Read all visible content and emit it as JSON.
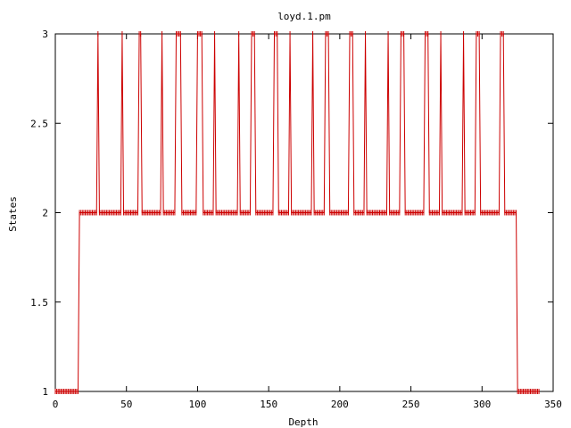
{
  "chart_data": {
    "type": "line",
    "title": "loyd.1.pm",
    "xlabel": "Depth",
    "ylabel": "States",
    "xlim": [
      0,
      350
    ],
    "ylim": [
      1,
      3
    ],
    "xticks": [
      0,
      50,
      100,
      150,
      200,
      250,
      300,
      350
    ],
    "xtick_labels": [
      "0",
      "50",
      "100",
      "150",
      "200",
      "250",
      "300",
      "350"
    ],
    "yticks": [
      1,
      1.5,
      2,
      2.5,
      3
    ],
    "ytick_labels": [
      "1",
      "1.5",
      "2",
      "2.5",
      "3"
    ],
    "grid": false,
    "legend": "none",
    "series_color": "#cc0000",
    "series": [
      {
        "points": [
          [
            0,
            1
          ],
          [
            1,
            1
          ],
          [
            2,
            1
          ],
          [
            3,
            1
          ],
          [
            4,
            1
          ],
          [
            5,
            1
          ],
          [
            6,
            1
          ],
          [
            7,
            1
          ],
          [
            8,
            1
          ],
          [
            9,
            1
          ],
          [
            10,
            1
          ],
          [
            11,
            1
          ],
          [
            12,
            1
          ],
          [
            13,
            1
          ],
          [
            14,
            1
          ],
          [
            15,
            1
          ],
          [
            16,
            1
          ],
          [
            17,
            2
          ],
          [
            18,
            2
          ],
          [
            19,
            2
          ],
          [
            20,
            2
          ],
          [
            21,
            2
          ],
          [
            22,
            2
          ],
          [
            23,
            2
          ],
          [
            24,
            2
          ],
          [
            25,
            2
          ],
          [
            26,
            2
          ],
          [
            27,
            2
          ],
          [
            28,
            2
          ],
          [
            29,
            2
          ],
          [
            30,
            3
          ],
          [
            31,
            2
          ],
          [
            32,
            2
          ],
          [
            33,
            2
          ],
          [
            34,
            2
          ],
          [
            35,
            2
          ],
          [
            36,
            2
          ],
          [
            37,
            2
          ],
          [
            38,
            2
          ],
          [
            39,
            2
          ],
          [
            40,
            2
          ],
          [
            41,
            2
          ],
          [
            42,
            2
          ],
          [
            43,
            2
          ],
          [
            44,
            2
          ],
          [
            45,
            2
          ],
          [
            46,
            2
          ],
          [
            47,
            3
          ],
          [
            48,
            2
          ],
          [
            49,
            2
          ],
          [
            50,
            2
          ],
          [
            51,
            2
          ],
          [
            52,
            2
          ],
          [
            53,
            2
          ],
          [
            54,
            2
          ],
          [
            55,
            2
          ],
          [
            56,
            2
          ],
          [
            57,
            2
          ],
          [
            58,
            2
          ],
          [
            59,
            3
          ],
          [
            60,
            3
          ],
          [
            61,
            2
          ],
          [
            62,
            2
          ],
          [
            63,
            2
          ],
          [
            64,
            2
          ],
          [
            65,
            2
          ],
          [
            66,
            2
          ],
          [
            67,
            2
          ],
          [
            68,
            2
          ],
          [
            69,
            2
          ],
          [
            70,
            2
          ],
          [
            71,
            2
          ],
          [
            72,
            2
          ],
          [
            73,
            2
          ],
          [
            74,
            2
          ],
          [
            75,
            3
          ],
          [
            76,
            2
          ],
          [
            77,
            2
          ],
          [
            78,
            2
          ],
          [
            79,
            2
          ],
          [
            80,
            2
          ],
          [
            81,
            2
          ],
          [
            82,
            2
          ],
          [
            83,
            2
          ],
          [
            84,
            2
          ],
          [
            85,
            3
          ],
          [
            86,
            3
          ],
          [
            87,
            3
          ],
          [
            88,
            3
          ],
          [
            89,
            2
          ],
          [
            90,
            2
          ],
          [
            91,
            2
          ],
          [
            92,
            2
          ],
          [
            93,
            2
          ],
          [
            94,
            2
          ],
          [
            95,
            2
          ],
          [
            96,
            2
          ],
          [
            97,
            2
          ],
          [
            98,
            2
          ],
          [
            99,
            2
          ],
          [
            100,
            3
          ],
          [
            101,
            3
          ],
          [
            102,
            3
          ],
          [
            103,
            3
          ],
          [
            104,
            2
          ],
          [
            105,
            2
          ],
          [
            106,
            2
          ],
          [
            107,
            2
          ],
          [
            108,
            2
          ],
          [
            109,
            2
          ],
          [
            110,
            2
          ],
          [
            111,
            2
          ],
          [
            112,
            3
          ],
          [
            113,
            2
          ],
          [
            114,
            2
          ],
          [
            115,
            2
          ],
          [
            116,
            2
          ],
          [
            117,
            2
          ],
          [
            118,
            2
          ],
          [
            119,
            2
          ],
          [
            120,
            2
          ],
          [
            121,
            2
          ],
          [
            122,
            2
          ],
          [
            123,
            2
          ],
          [
            124,
            2
          ],
          [
            125,
            2
          ],
          [
            126,
            2
          ],
          [
            127,
            2
          ],
          [
            128,
            2
          ],
          [
            129,
            3
          ],
          [
            130,
            2
          ],
          [
            131,
            2
          ],
          [
            132,
            2
          ],
          [
            133,
            2
          ],
          [
            134,
            2
          ],
          [
            135,
            2
          ],
          [
            136,
            2
          ],
          [
            137,
            2
          ],
          [
            138,
            3
          ],
          [
            139,
            3
          ],
          [
            140,
            3
          ],
          [
            141,
            2
          ],
          [
            142,
            2
          ],
          [
            143,
            2
          ],
          [
            144,
            2
          ],
          [
            145,
            2
          ],
          [
            146,
            2
          ],
          [
            147,
            2
          ],
          [
            148,
            2
          ],
          [
            149,
            2
          ],
          [
            150,
            2
          ],
          [
            151,
            2
          ],
          [
            152,
            2
          ],
          [
            153,
            2
          ],
          [
            154,
            3
          ],
          [
            155,
            3
          ],
          [
            156,
            3
          ],
          [
            157,
            2
          ],
          [
            158,
            2
          ],
          [
            159,
            2
          ],
          [
            160,
            2
          ],
          [
            161,
            2
          ],
          [
            162,
            2
          ],
          [
            163,
            2
          ],
          [
            164,
            2
          ],
          [
            165,
            3
          ],
          [
            166,
            2
          ],
          [
            167,
            2
          ],
          [
            168,
            2
          ],
          [
            169,
            2
          ],
          [
            170,
            2
          ],
          [
            171,
            2
          ],
          [
            172,
            2
          ],
          [
            173,
            2
          ],
          [
            174,
            2
          ],
          [
            175,
            2
          ],
          [
            176,
            2
          ],
          [
            177,
            2
          ],
          [
            178,
            2
          ],
          [
            179,
            2
          ],
          [
            180,
            2
          ],
          [
            181,
            3
          ],
          [
            182,
            2
          ],
          [
            183,
            2
          ],
          [
            184,
            2
          ],
          [
            185,
            2
          ],
          [
            186,
            2
          ],
          [
            187,
            2
          ],
          [
            188,
            2
          ],
          [
            189,
            2
          ],
          [
            190,
            3
          ],
          [
            191,
            3
          ],
          [
            192,
            3
          ],
          [
            193,
            2
          ],
          [
            194,
            2
          ],
          [
            195,
            2
          ],
          [
            196,
            2
          ],
          [
            197,
            2
          ],
          [
            198,
            2
          ],
          [
            199,
            2
          ],
          [
            200,
            2
          ],
          [
            201,
            2
          ],
          [
            202,
            2
          ],
          [
            203,
            2
          ],
          [
            204,
            2
          ],
          [
            205,
            2
          ],
          [
            206,
            2
          ],
          [
            207,
            3
          ],
          [
            208,
            3
          ],
          [
            209,
            3
          ],
          [
            210,
            2
          ],
          [
            211,
            2
          ],
          [
            212,
            2
          ],
          [
            213,
            2
          ],
          [
            214,
            2
          ],
          [
            215,
            2
          ],
          [
            216,
            2
          ],
          [
            217,
            2
          ],
          [
            218,
            3
          ],
          [
            219,
            2
          ],
          [
            220,
            2
          ],
          [
            221,
            2
          ],
          [
            222,
            2
          ],
          [
            223,
            2
          ],
          [
            224,
            2
          ],
          [
            225,
            2
          ],
          [
            226,
            2
          ],
          [
            227,
            2
          ],
          [
            228,
            2
          ],
          [
            229,
            2
          ],
          [
            230,
            2
          ],
          [
            231,
            2
          ],
          [
            232,
            2
          ],
          [
            233,
            2
          ],
          [
            234,
            3
          ],
          [
            235,
            2
          ],
          [
            236,
            2
          ],
          [
            237,
            2
          ],
          [
            238,
            2
          ],
          [
            239,
            2
          ],
          [
            240,
            2
          ],
          [
            241,
            2
          ],
          [
            242,
            2
          ],
          [
            243,
            3
          ],
          [
            244,
            3
          ],
          [
            245,
            3
          ],
          [
            246,
            2
          ],
          [
            247,
            2
          ],
          [
            248,
            2
          ],
          [
            249,
            2
          ],
          [
            250,
            2
          ],
          [
            251,
            2
          ],
          [
            252,
            2
          ],
          [
            253,
            2
          ],
          [
            254,
            2
          ],
          [
            255,
            2
          ],
          [
            256,
            2
          ],
          [
            257,
            2
          ],
          [
            258,
            2
          ],
          [
            259,
            2
          ],
          [
            260,
            3
          ],
          [
            261,
            3
          ],
          [
            262,
            3
          ],
          [
            263,
            2
          ],
          [
            264,
            2
          ],
          [
            265,
            2
          ],
          [
            266,
            2
          ],
          [
            267,
            2
          ],
          [
            268,
            2
          ],
          [
            269,
            2
          ],
          [
            270,
            2
          ],
          [
            271,
            3
          ],
          [
            272,
            2
          ],
          [
            273,
            2
          ],
          [
            274,
            2
          ],
          [
            275,
            2
          ],
          [
            276,
            2
          ],
          [
            277,
            2
          ],
          [
            278,
            2
          ],
          [
            279,
            2
          ],
          [
            280,
            2
          ],
          [
            281,
            2
          ],
          [
            282,
            2
          ],
          [
            283,
            2
          ],
          [
            284,
            2
          ],
          [
            285,
            2
          ],
          [
            286,
            2
          ],
          [
            287,
            3
          ],
          [
            288,
            2
          ],
          [
            289,
            2
          ],
          [
            290,
            2
          ],
          [
            291,
            2
          ],
          [
            292,
            2
          ],
          [
            293,
            2
          ],
          [
            294,
            2
          ],
          [
            295,
            2
          ],
          [
            296,
            3
          ],
          [
            297,
            3
          ],
          [
            298,
            3
          ],
          [
            299,
            2
          ],
          [
            300,
            2
          ],
          [
            301,
            2
          ],
          [
            302,
            2
          ],
          [
            303,
            2
          ],
          [
            304,
            2
          ],
          [
            305,
            2
          ],
          [
            306,
            2
          ],
          [
            307,
            2
          ],
          [
            308,
            2
          ],
          [
            309,
            2
          ],
          [
            310,
            2
          ],
          [
            311,
            2
          ],
          [
            312,
            2
          ],
          [
            313,
            3
          ],
          [
            314,
            3
          ],
          [
            315,
            3
          ],
          [
            316,
            2
          ],
          [
            317,
            2
          ],
          [
            318,
            2
          ],
          [
            319,
            2
          ],
          [
            320,
            2
          ],
          [
            321,
            2
          ],
          [
            322,
            2
          ],
          [
            323,
            2
          ],
          [
            324,
            2
          ],
          [
            325,
            1
          ],
          [
            326,
            1
          ],
          [
            327,
            1
          ],
          [
            328,
            1
          ],
          [
            329,
            1
          ],
          [
            330,
            1
          ],
          [
            331,
            1
          ],
          [
            332,
            1
          ],
          [
            333,
            1
          ],
          [
            334,
            1
          ],
          [
            335,
            1
          ],
          [
            336,
            1
          ],
          [
            337,
            1
          ],
          [
            338,
            1
          ],
          [
            339,
            1
          ],
          [
            340,
            1
          ]
        ]
      }
    ]
  }
}
